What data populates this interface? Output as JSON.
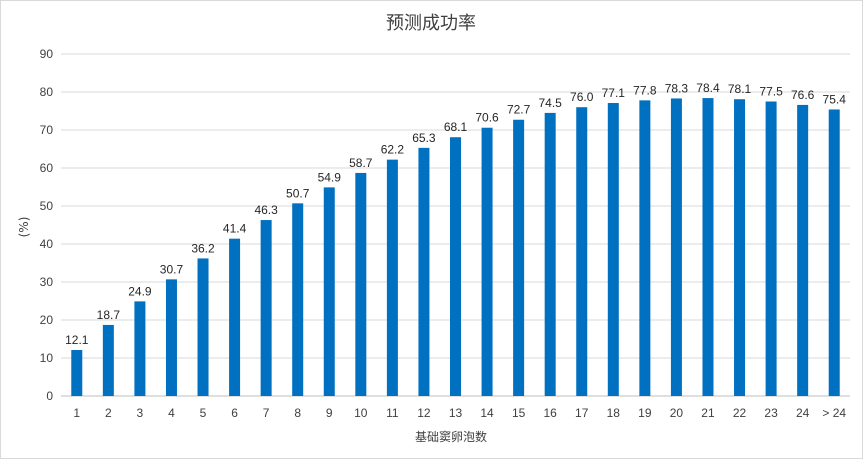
{
  "chart_data": {
    "type": "bar",
    "title": "预测成功率",
    "xlabel": "基础窦卵泡数",
    "ylabel": "(%)",
    "ylim": [
      0,
      90
    ],
    "yticks": [
      0,
      10,
      20,
      30,
      40,
      50,
      60,
      70,
      80,
      90
    ],
    "grid": true,
    "legend": "none",
    "bar_color": "#0070C0",
    "categories": [
      "1",
      "2",
      "3",
      "4",
      "5",
      "6",
      "7",
      "8",
      "9",
      "10",
      "11",
      "12",
      "13",
      "14",
      "15",
      "16",
      "17",
      "18",
      "19",
      "20",
      "21",
      "22",
      "23",
      "24",
      "> 24"
    ],
    "values": [
      12.1,
      18.7,
      24.9,
      30.7,
      36.2,
      41.4,
      46.3,
      50.7,
      54.9,
      58.7,
      62.2,
      65.3,
      68.1,
      70.6,
      72.7,
      74.5,
      76.0,
      77.1,
      77.8,
      78.3,
      78.4,
      78.1,
      77.5,
      76.6,
      75.4
    ],
    "labels": [
      "12.1",
      "18.7",
      "24.9",
      "30.7",
      "36.2",
      "41.4",
      "46.3",
      "50.7",
      "54.9",
      "58.7",
      "62.2",
      "65.3",
      "68.1",
      "70.6",
      "72.7",
      "74.5",
      "76.0",
      "77.1",
      "77.8",
      "78.3",
      "78.4",
      "78.1",
      "77.5",
      "76.6",
      "75.4"
    ]
  }
}
